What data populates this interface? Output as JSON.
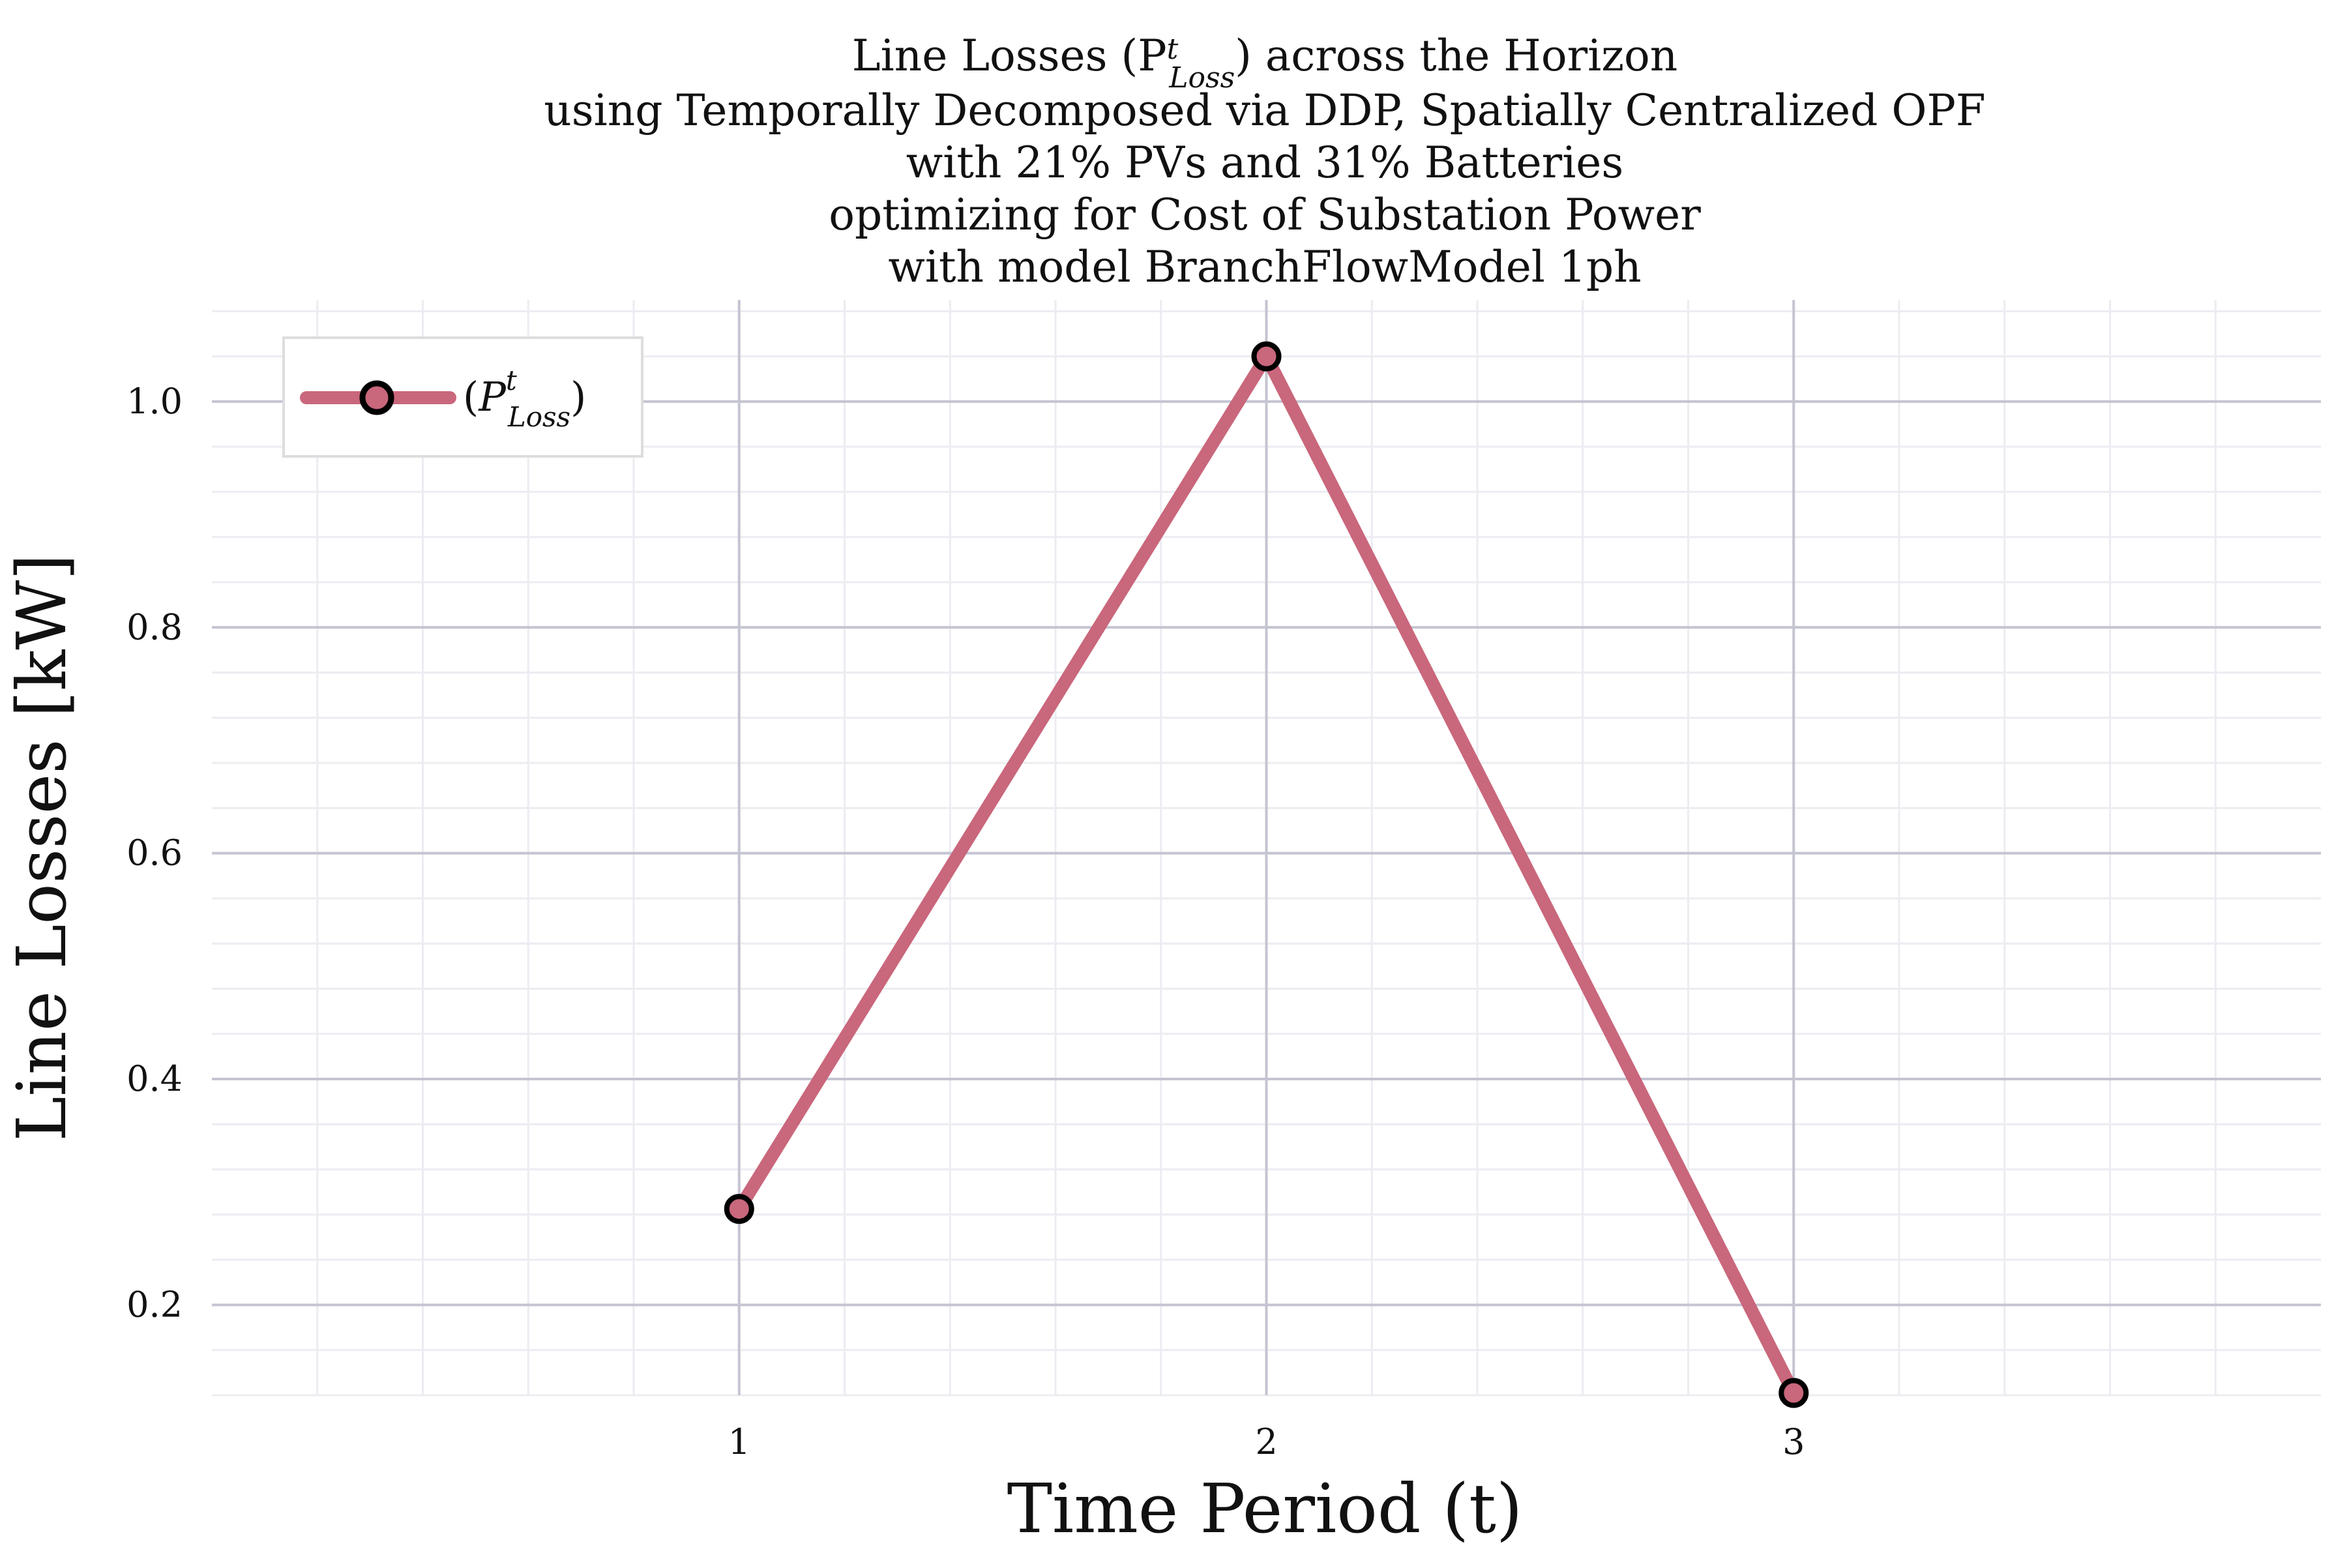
{
  "chart_data": {
    "type": "line",
    "title_lines": [
      "Line Losses (P",
      "using Temporally Decomposed via DDP, Spatially Centralized OPF",
      "with 21% PVs and 31% Batteries",
      "optimizing for Cost of Substation Power",
      "with model BranchFlowModel 1ph"
    ],
    "title_symbol": {
      "base": "P",
      "sup": "t",
      "sub": "Loss"
    },
    "title_line1_tail": ") across the Horizon",
    "xlabel": "Time Period (t)",
    "ylabel": "Line Losses [kW]",
    "x": [
      1,
      2,
      3
    ],
    "series": [
      {
        "name": "(P^t_Loss)",
        "values": [
          0.285,
          1.04,
          0.122
        ],
        "color": "#c9677c"
      }
    ],
    "xlim": [
      0,
      4
    ],
    "ylim": [
      0.12,
      1.09
    ],
    "x_ticks": [
      1,
      2,
      3
    ],
    "x_tick_labels": [
      "1",
      "2",
      "3"
    ],
    "y_ticks": [
      0.2,
      0.4,
      0.6,
      0.8,
      1.0
    ],
    "y_tick_labels": [
      "0.2",
      "0.4",
      "0.6",
      "0.8",
      "1.0"
    ],
    "grid": true,
    "legend_position": "top-left",
    "legend": {
      "open_paren": "(",
      "base": "P",
      "sup": "t",
      "sub": "Loss",
      "close_paren": ")"
    }
  }
}
